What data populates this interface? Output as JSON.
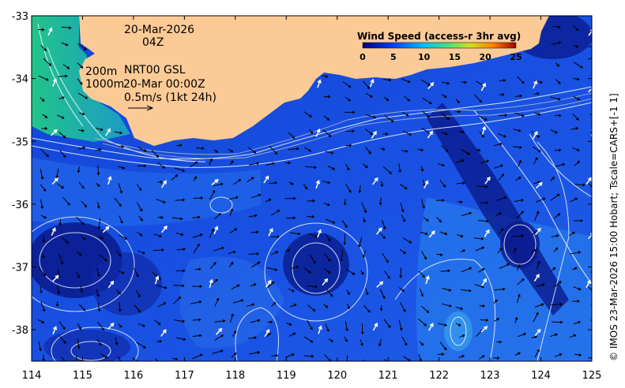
{
  "map": {
    "lon_ticks": [
      "114",
      "115",
      "116",
      "117",
      "118",
      "119",
      "120",
      "121",
      "122",
      "123",
      "124",
      "125"
    ],
    "lat_ticks": [
      "-33",
      "-34",
      "-35",
      "-36",
      "-37",
      "-38"
    ],
    "lon_range": [
      114,
      125
    ],
    "lat_range": [
      -38.5,
      -33
    ]
  },
  "annotations": {
    "date": "20-Mar-2026",
    "hour": "04Z",
    "depth_200": "200m",
    "product": "NRT00 GSL",
    "depth_1000": "1000m",
    "timestamp": "20-Mar 00:00Z",
    "scale": "0.5m/s (1kt 24h)"
  },
  "colorbar": {
    "title": "Wind Speed (access-r 3hr avg)",
    "ticks": [
      "0",
      "5",
      "10",
      "15",
      "20",
      "25"
    ],
    "range": [
      0,
      25
    ]
  },
  "credit": "© IMOS 23-Mar-2026 15:00 Hobart; Tscale=CARS+[-1 1]",
  "colors": {
    "land": "#fcca96",
    "deep_blue": "#0a1a8c",
    "mid_blue": "#1a4fe0",
    "light_blue": "#2b8cf0",
    "green": "#20c080"
  }
}
